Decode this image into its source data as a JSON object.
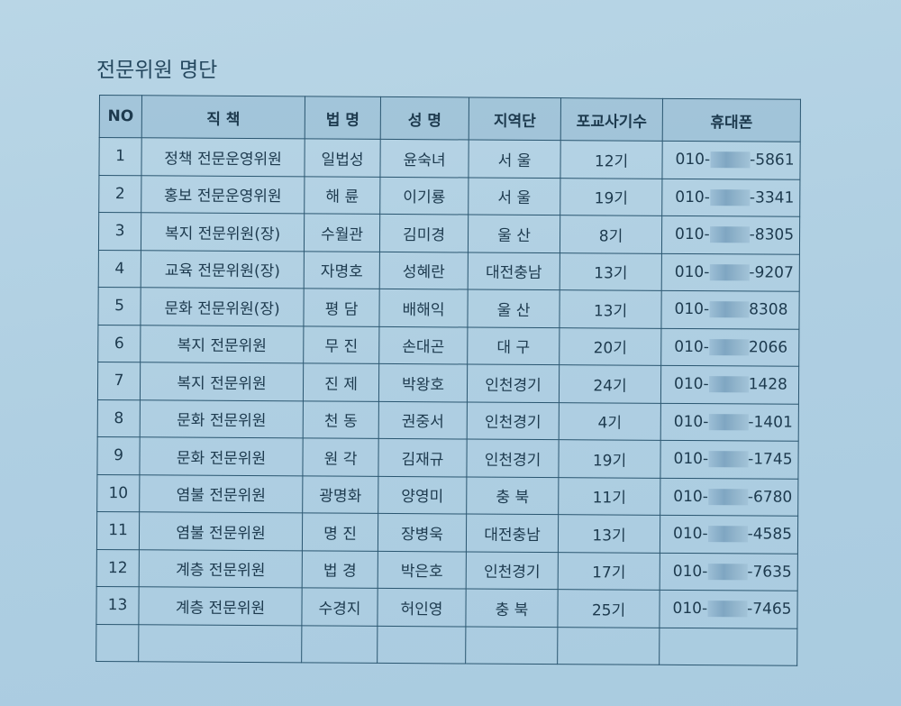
{
  "title": "전문위원 명단",
  "headers": [
    "NO",
    "직 책",
    "법 명",
    "성 명",
    "지역단",
    "포교사기수",
    "휴대폰"
  ],
  "rows": [
    {
      "no": "1",
      "role": "정책 전문운영위원",
      "dharma": "일법성",
      "name": "윤숙녀",
      "region": "서 울",
      "class": "12기",
      "phone_prefix": "010-",
      "phone_suffix": "-5861"
    },
    {
      "no": "2",
      "role": "홍보 전문운영위원",
      "dharma": "해 륜",
      "name": "이기룡",
      "region": "서 울",
      "class": "19기",
      "phone_prefix": "010-",
      "phone_suffix": "-3341"
    },
    {
      "no": "3",
      "role": "복지 전문위원(장)",
      "dharma": "수월관",
      "name": "김미경",
      "region": "울 산",
      "class": "8기",
      "phone_prefix": "010-",
      "phone_suffix": "-8305"
    },
    {
      "no": "4",
      "role": "교육 전문위원(장)",
      "dharma": "자명호",
      "name": "성혜란",
      "region": "대전충남",
      "class": "13기",
      "phone_prefix": "010-",
      "phone_suffix": "-9207"
    },
    {
      "no": "5",
      "role": "문화 전문위원(장)",
      "dharma": "평 담",
      "name": "배해익",
      "region": "울 산",
      "class": "13기",
      "phone_prefix": "010-",
      "phone_suffix": "8308"
    },
    {
      "no": "6",
      "role": "복지 전문위원",
      "dharma": "무 진",
      "name": "손대곤",
      "region": "대 구",
      "class": "20기",
      "phone_prefix": "010-",
      "phone_suffix": "2066"
    },
    {
      "no": "7",
      "role": "복지 전문위원",
      "dharma": "진 제",
      "name": "박왕호",
      "region": "인천경기",
      "class": "24기",
      "phone_prefix": "010-",
      "phone_suffix": "1428"
    },
    {
      "no": "8",
      "role": "문화 전문위원",
      "dharma": "천 동",
      "name": "권중서",
      "region": "인천경기",
      "class": "4기",
      "phone_prefix": "010-",
      "phone_suffix": "-1401"
    },
    {
      "no": "9",
      "role": "문화 전문위원",
      "dharma": "원 각",
      "name": "김재규",
      "region": "인천경기",
      "class": "19기",
      "phone_prefix": "010-",
      "phone_suffix": "-1745"
    },
    {
      "no": "10",
      "role": "염불 전문위원",
      "dharma": "광명화",
      "name": "양영미",
      "region": "충 북",
      "class": "11기",
      "phone_prefix": "010-",
      "phone_suffix": "-6780"
    },
    {
      "no": "11",
      "role": "염불 전문위원",
      "dharma": "명 진",
      "name": "장병욱",
      "region": "대전충남",
      "class": "13기",
      "phone_prefix": "010-",
      "phone_suffix": "-4585"
    },
    {
      "no": "12",
      "role": "계층 전문위원",
      "dharma": "법 경",
      "name": "박은호",
      "region": "인천경기",
      "class": "17기",
      "phone_prefix": "010-",
      "phone_suffix": "-7635"
    },
    {
      "no": "13",
      "role": "계층 전문위원",
      "dharma": "수경지",
      "name": "허인영",
      "region": "충 북",
      "class": "25기",
      "phone_prefix": "010-",
      "phone_suffix": "-7465"
    }
  ]
}
